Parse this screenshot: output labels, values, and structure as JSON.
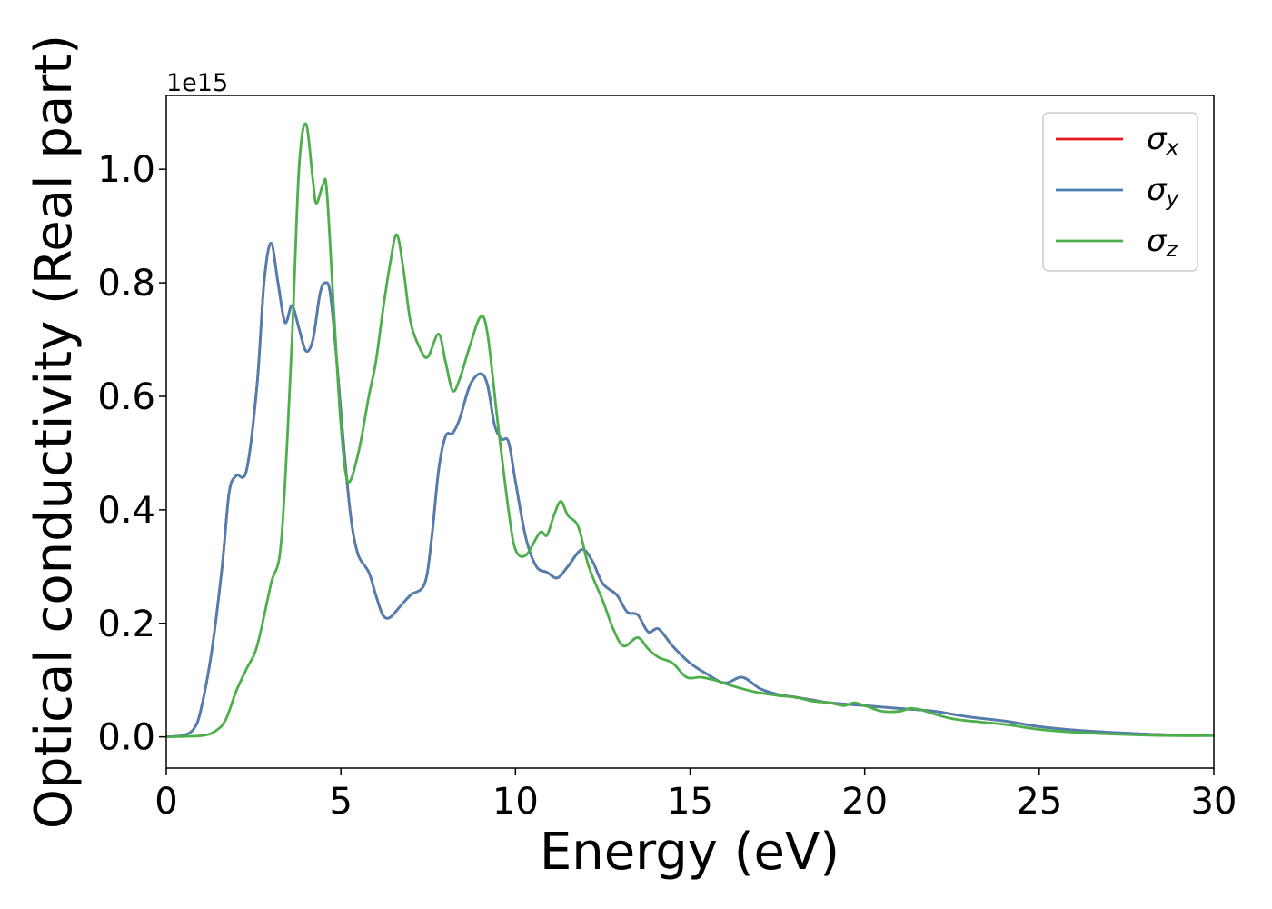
{
  "chart_data": {
    "type": "line",
    "xlabel": "Energy (eV)",
    "ylabel": "Optical conductivity (Real part)",
    "y_offset_label": "1e15",
    "xlim": [
      0,
      30
    ],
    "ylim": [
      -0.055,
      1.13
    ],
    "xticks": [
      0,
      5,
      10,
      15,
      20,
      25,
      30
    ],
    "yticks": [
      0.0,
      0.2,
      0.4,
      0.6,
      0.8,
      1.0
    ],
    "xtick_labels": [
      "0",
      "5",
      "10",
      "15",
      "20",
      "25",
      "30"
    ],
    "ytick_labels": [
      "0.0",
      "0.2",
      "0.4",
      "0.6",
      "0.8",
      "1.0"
    ],
    "grid": false,
    "legend_position": "top-right",
    "series": [
      {
        "name": "σx",
        "symbol": "σ",
        "subscript": "x",
        "color": "#e41a1c",
        "points": [
          [
            0,
            0
          ],
          [
            0.5,
            0.003
          ],
          [
            0.8,
            0.015
          ],
          [
            1.0,
            0.05
          ],
          [
            1.3,
            0.15
          ],
          [
            1.6,
            0.3
          ],
          [
            1.8,
            0.43
          ],
          [
            2.0,
            0.46
          ],
          [
            2.3,
            0.47
          ],
          [
            2.6,
            0.62
          ],
          [
            2.8,
            0.8
          ],
          [
            3.0,
            0.87
          ],
          [
            3.2,
            0.8
          ],
          [
            3.4,
            0.73
          ],
          [
            3.6,
            0.76
          ],
          [
            3.8,
            0.72
          ],
          [
            4.0,
            0.68
          ],
          [
            4.2,
            0.7
          ],
          [
            4.4,
            0.78
          ],
          [
            4.55,
            0.8
          ],
          [
            4.7,
            0.78
          ],
          [
            4.9,
            0.65
          ],
          [
            5.1,
            0.5
          ],
          [
            5.3,
            0.38
          ],
          [
            5.5,
            0.32
          ],
          [
            5.8,
            0.29
          ],
          [
            6.0,
            0.25
          ],
          [
            6.2,
            0.215
          ],
          [
            6.4,
            0.21
          ],
          [
            6.7,
            0.23
          ],
          [
            7.0,
            0.25
          ],
          [
            7.4,
            0.27
          ],
          [
            7.6,
            0.35
          ],
          [
            7.8,
            0.47
          ],
          [
            8.0,
            0.53
          ],
          [
            8.2,
            0.535
          ],
          [
            8.4,
            0.56
          ],
          [
            8.7,
            0.62
          ],
          [
            9.0,
            0.64
          ],
          [
            9.2,
            0.62
          ],
          [
            9.4,
            0.55
          ],
          [
            9.6,
            0.525
          ],
          [
            9.8,
            0.52
          ],
          [
            10.0,
            0.45
          ],
          [
            10.3,
            0.35
          ],
          [
            10.6,
            0.3
          ],
          [
            10.9,
            0.29
          ],
          [
            11.2,
            0.28
          ],
          [
            11.5,
            0.3
          ],
          [
            11.9,
            0.33
          ],
          [
            12.2,
            0.31
          ],
          [
            12.5,
            0.27
          ],
          [
            12.9,
            0.25
          ],
          [
            13.2,
            0.22
          ],
          [
            13.5,
            0.215
          ],
          [
            13.8,
            0.185
          ],
          [
            14.1,
            0.19
          ],
          [
            14.5,
            0.16
          ],
          [
            15.0,
            0.13
          ],
          [
            15.5,
            0.11
          ],
          [
            16.0,
            0.095
          ],
          [
            16.5,
            0.105
          ],
          [
            17.0,
            0.085
          ],
          [
            17.5,
            0.075
          ],
          [
            18.0,
            0.07
          ],
          [
            18.5,
            0.065
          ],
          [
            19.0,
            0.06
          ],
          [
            20.0,
            0.055
          ],
          [
            21.0,
            0.05
          ],
          [
            22.0,
            0.045
          ],
          [
            23.0,
            0.035
          ],
          [
            24.0,
            0.028
          ],
          [
            25.0,
            0.018
          ],
          [
            26.0,
            0.012
          ],
          [
            27.0,
            0.008
          ],
          [
            28.0,
            0.005
          ],
          [
            29.0,
            0.003
          ],
          [
            30.0,
            0.003
          ]
        ]
      },
      {
        "name": "σy",
        "symbol": "σ",
        "subscript": "y",
        "color": "#4e7fb0",
        "points": [
          [
            0,
            0
          ],
          [
            0.5,
            0.003
          ],
          [
            0.8,
            0.015
          ],
          [
            1.0,
            0.05
          ],
          [
            1.3,
            0.15
          ],
          [
            1.6,
            0.3
          ],
          [
            1.8,
            0.43
          ],
          [
            2.0,
            0.46
          ],
          [
            2.3,
            0.47
          ],
          [
            2.6,
            0.62
          ],
          [
            2.8,
            0.8
          ],
          [
            3.0,
            0.87
          ],
          [
            3.2,
            0.8
          ],
          [
            3.4,
            0.73
          ],
          [
            3.6,
            0.76
          ],
          [
            3.8,
            0.72
          ],
          [
            4.0,
            0.68
          ],
          [
            4.2,
            0.7
          ],
          [
            4.4,
            0.78
          ],
          [
            4.55,
            0.8
          ],
          [
            4.7,
            0.78
          ],
          [
            4.9,
            0.65
          ],
          [
            5.1,
            0.5
          ],
          [
            5.3,
            0.38
          ],
          [
            5.5,
            0.32
          ],
          [
            5.8,
            0.29
          ],
          [
            6.0,
            0.25
          ],
          [
            6.2,
            0.215
          ],
          [
            6.4,
            0.21
          ],
          [
            6.7,
            0.23
          ],
          [
            7.0,
            0.25
          ],
          [
            7.4,
            0.27
          ],
          [
            7.6,
            0.35
          ],
          [
            7.8,
            0.47
          ],
          [
            8.0,
            0.53
          ],
          [
            8.2,
            0.535
          ],
          [
            8.4,
            0.56
          ],
          [
            8.7,
            0.62
          ],
          [
            9.0,
            0.64
          ],
          [
            9.2,
            0.62
          ],
          [
            9.4,
            0.55
          ],
          [
            9.6,
            0.525
          ],
          [
            9.8,
            0.52
          ],
          [
            10.0,
            0.45
          ],
          [
            10.3,
            0.35
          ],
          [
            10.6,
            0.3
          ],
          [
            10.9,
            0.29
          ],
          [
            11.2,
            0.28
          ],
          [
            11.5,
            0.3
          ],
          [
            11.9,
            0.33
          ],
          [
            12.2,
            0.31
          ],
          [
            12.5,
            0.27
          ],
          [
            12.9,
            0.25
          ],
          [
            13.2,
            0.22
          ],
          [
            13.5,
            0.215
          ],
          [
            13.8,
            0.185
          ],
          [
            14.1,
            0.19
          ],
          [
            14.5,
            0.16
          ],
          [
            15.0,
            0.13
          ],
          [
            15.5,
            0.11
          ],
          [
            16.0,
            0.095
          ],
          [
            16.5,
            0.105
          ],
          [
            17.0,
            0.085
          ],
          [
            17.5,
            0.075
          ],
          [
            18.0,
            0.07
          ],
          [
            18.5,
            0.065
          ],
          [
            19.0,
            0.06
          ],
          [
            20.0,
            0.055
          ],
          [
            21.0,
            0.05
          ],
          [
            22.0,
            0.045
          ],
          [
            23.0,
            0.035
          ],
          [
            24.0,
            0.028
          ],
          [
            25.0,
            0.018
          ],
          [
            26.0,
            0.012
          ],
          [
            27.0,
            0.008
          ],
          [
            28.0,
            0.005
          ],
          [
            29.0,
            0.003
          ],
          [
            30.0,
            0.003
          ]
        ]
      },
      {
        "name": "σz",
        "symbol": "σ",
        "subscript": "z",
        "color": "#4daf4a",
        "points": [
          [
            0,
            0
          ],
          [
            1.0,
            0.002
          ],
          [
            1.4,
            0.01
          ],
          [
            1.7,
            0.03
          ],
          [
            2.0,
            0.08
          ],
          [
            2.3,
            0.12
          ],
          [
            2.6,
            0.16
          ],
          [
            3.0,
            0.27
          ],
          [
            3.3,
            0.35
          ],
          [
            3.6,
            0.7
          ],
          [
            3.8,
            1.0
          ],
          [
            4.0,
            1.08
          ],
          [
            4.2,
            0.98
          ],
          [
            4.3,
            0.94
          ],
          [
            4.5,
            0.975
          ],
          [
            4.6,
            0.96
          ],
          [
            4.8,
            0.75
          ],
          [
            5.0,
            0.55
          ],
          [
            5.2,
            0.45
          ],
          [
            5.5,
            0.5
          ],
          [
            5.8,
            0.6
          ],
          [
            6.0,
            0.66
          ],
          [
            6.2,
            0.75
          ],
          [
            6.4,
            0.83
          ],
          [
            6.6,
            0.885
          ],
          [
            6.8,
            0.82
          ],
          [
            7.0,
            0.73
          ],
          [
            7.3,
            0.68
          ],
          [
            7.5,
            0.67
          ],
          [
            7.8,
            0.71
          ],
          [
            8.0,
            0.66
          ],
          [
            8.2,
            0.61
          ],
          [
            8.4,
            0.63
          ],
          [
            8.7,
            0.69
          ],
          [
            9.0,
            0.74
          ],
          [
            9.2,
            0.71
          ],
          [
            9.5,
            0.55
          ],
          [
            9.8,
            0.4
          ],
          [
            10.0,
            0.33
          ],
          [
            10.3,
            0.32
          ],
          [
            10.7,
            0.36
          ],
          [
            10.9,
            0.355
          ],
          [
            11.1,
            0.39
          ],
          [
            11.3,
            0.415
          ],
          [
            11.5,
            0.39
          ],
          [
            11.8,
            0.37
          ],
          [
            12.1,
            0.3
          ],
          [
            12.5,
            0.24
          ],
          [
            12.8,
            0.19
          ],
          [
            13.1,
            0.16
          ],
          [
            13.5,
            0.175
          ],
          [
            13.8,
            0.155
          ],
          [
            14.1,
            0.14
          ],
          [
            14.5,
            0.13
          ],
          [
            14.9,
            0.105
          ],
          [
            15.3,
            0.105
          ],
          [
            15.7,
            0.1
          ],
          [
            16.2,
            0.09
          ],
          [
            16.8,
            0.08
          ],
          [
            17.5,
            0.073
          ],
          [
            18.0,
            0.07
          ],
          [
            18.5,
            0.063
          ],
          [
            19.0,
            0.06
          ],
          [
            19.4,
            0.055
          ],
          [
            19.7,
            0.06
          ],
          [
            20.0,
            0.055
          ],
          [
            20.5,
            0.045
          ],
          [
            21.0,
            0.045
          ],
          [
            21.3,
            0.05
          ],
          [
            21.6,
            0.048
          ],
          [
            22.0,
            0.04
          ],
          [
            22.5,
            0.032
          ],
          [
            23.0,
            0.028
          ],
          [
            24.0,
            0.022
          ],
          [
            25.0,
            0.013
          ],
          [
            26.0,
            0.008
          ],
          [
            27.0,
            0.005
          ],
          [
            28.0,
            0.003
          ],
          [
            29.0,
            0.002
          ],
          [
            30.0,
            0.002
          ]
        ]
      }
    ]
  }
}
